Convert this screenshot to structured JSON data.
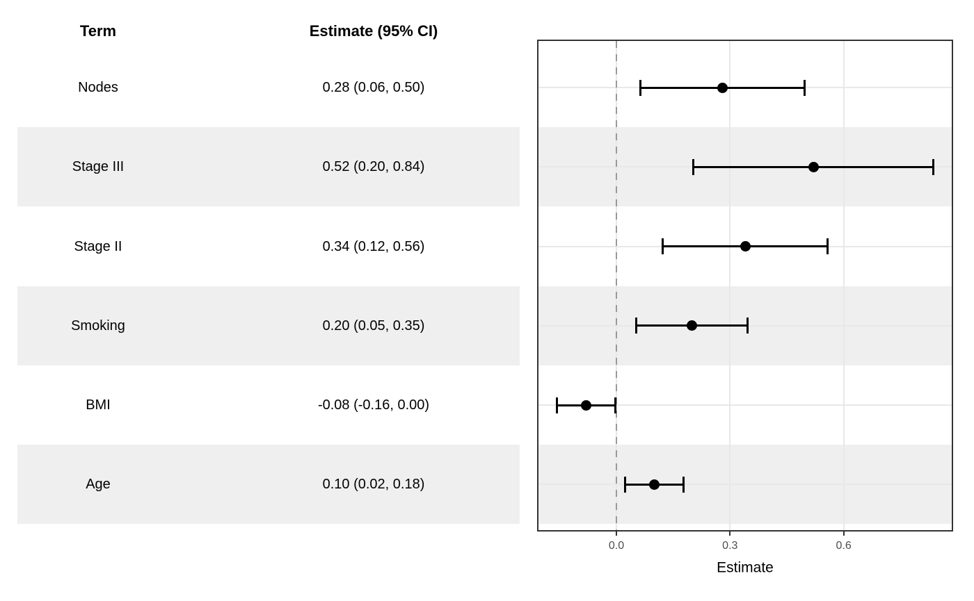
{
  "table": {
    "headers": {
      "term": "Term",
      "estimate": "Estimate (95% CI)"
    },
    "rows": [
      {
        "term": "Nodes",
        "estimate_label": "0.28 (0.06, 0.50)"
      },
      {
        "term": "Stage III",
        "estimate_label": "0.52 (0.20, 0.84)"
      },
      {
        "term": "Stage II",
        "estimate_label": "0.34 (0.12, 0.56)"
      },
      {
        "term": "Smoking",
        "estimate_label": "0.20 (0.05, 0.35)"
      },
      {
        "term": "BMI",
        "estimate_label": "-0.08 (-0.16, 0.00)"
      },
      {
        "term": "Age",
        "estimate_label": "0.10 (0.02, 0.18)"
      }
    ]
  },
  "chart_data": {
    "type": "scatter",
    "subtype": "forest-plot-with-horizontal-error-bars",
    "terms": [
      "Nodes",
      "Stage III",
      "Stage II",
      "Smoking",
      "BMI",
      "Age"
    ],
    "estimates": [
      0.28,
      0.52,
      0.34,
      0.2,
      -0.08,
      0.1
    ],
    "ci_low": [
      0.06,
      0.2,
      0.12,
      0.05,
      -0.16,
      0.02
    ],
    "ci_high": [
      0.5,
      0.84,
      0.56,
      0.35,
      0.0,
      0.18
    ],
    "xlabel": "Estimate",
    "x_ticks": [
      {
        "value": 0.0,
        "label": "0.0"
      },
      {
        "value": 0.3,
        "label": "0.3"
      },
      {
        "value": 0.6,
        "label": "0.6"
      }
    ],
    "xlim": [
      -0.208,
      0.889
    ],
    "reference_line": {
      "value": 0.0,
      "style": "dashed"
    },
    "grid": "major gridlines only (vertical at ticks, horizontal at each row)",
    "row_striping": "alternating gray bands on Stage III, Smoking, Age rows",
    "legend": "none"
  },
  "colors": {
    "stripe": "#EFEFEF",
    "gridline": "#E8E8E8",
    "panel_border": "#333333",
    "reference_line": "#999999",
    "marker": "#000000",
    "tick_label_text": "#4D4D4D",
    "text": "#000000"
  }
}
